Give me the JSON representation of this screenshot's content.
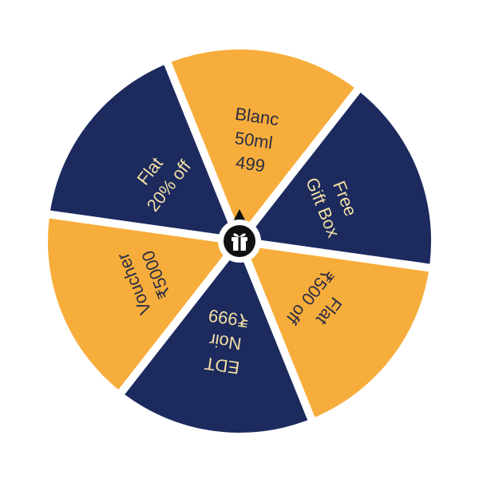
{
  "wheel": {
    "colors": {
      "navy": "#1c2a5e",
      "orange": "#f7ad3b",
      "separator": "#ffffff",
      "text_on_orange": "#2a2e45",
      "text_on_navy": "#f3dfa5",
      "hub": "#111111"
    },
    "center_icon": "gift-icon",
    "segments": [
      {
        "id": "blanc",
        "color": "orange",
        "lines": [
          "Blanc",
          "50ml",
          "499"
        ]
      },
      {
        "id": "gift-box",
        "color": "navy",
        "lines": [
          "Free",
          "Gift Box"
        ]
      },
      {
        "id": "flat-500",
        "color": "orange",
        "lines": [
          "Flat",
          "₹500 off"
        ]
      },
      {
        "id": "edt-noir",
        "color": "navy",
        "lines": [
          "EDT",
          "Noir",
          "₹999"
        ]
      },
      {
        "id": "voucher",
        "color": "orange",
        "lines": [
          "Voucher",
          "₹5000"
        ]
      },
      {
        "id": "flat-20",
        "color": "navy",
        "lines": [
          "Flat",
          "20% off"
        ]
      }
    ]
  }
}
